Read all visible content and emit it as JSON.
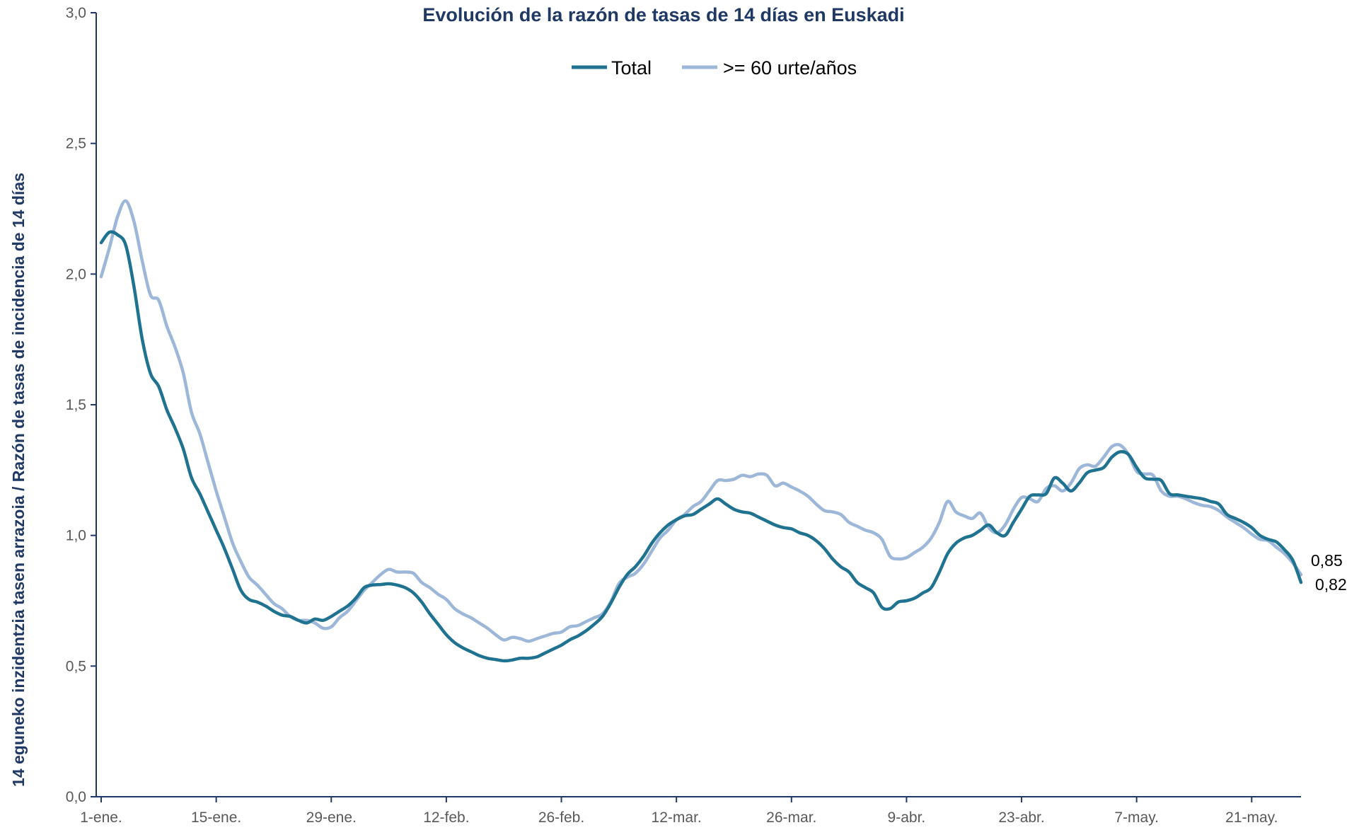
{
  "chart_data": {
    "type": "line",
    "title": "Evolución de la razón de tasas de 14 días en Euskadi",
    "ylabel": "14 eguneko inzidentzia tasen arrazoia / Razón de tasas de  incidencia de 14 días",
    "xlabel": "",
    "ylim": [
      0,
      3
    ],
    "yticks": [
      "0,0",
      "0,5",
      "1,0",
      "1,5",
      "2,0",
      "2,5",
      "3,0"
    ],
    "x_tick_labels": [
      "1-ene.",
      "15-ene.",
      "29-ene.",
      "12-feb.",
      "26-feb.",
      "12-mar.",
      "26-mar.",
      "9-abr.",
      "23-abr.",
      "7-may.",
      "21-may."
    ],
    "x_tick_days": [
      0,
      14,
      28,
      42,
      56,
      70,
      84,
      98,
      112,
      126,
      140
    ],
    "x_range_days": [
      0,
      146
    ],
    "legend_position": "top-center",
    "grid": false,
    "end_labels": [
      "0,85",
      "0,82"
    ],
    "series": [
      {
        "name": "Total",
        "color": "#1f7391",
        "points": [
          [
            0,
            2.12
          ],
          [
            1,
            2.16
          ],
          [
            2,
            2.15
          ],
          [
            3,
            2.11
          ],
          [
            4,
            1.95
          ],
          [
            5,
            1.75
          ],
          [
            6,
            1.62
          ],
          [
            7,
            1.57
          ],
          [
            8,
            1.48
          ],
          [
            9,
            1.41
          ],
          [
            10,
            1.33
          ],
          [
            11,
            1.22
          ],
          [
            12,
            1.16
          ],
          [
            13,
            1.09
          ],
          [
            14,
            1.02
          ],
          [
            15,
            0.95
          ],
          [
            16,
            0.87
          ],
          [
            17,
            0.79
          ],
          [
            18,
            0.755
          ],
          [
            19,
            0.745
          ],
          [
            20,
            0.73
          ],
          [
            21,
            0.71
          ],
          [
            22,
            0.695
          ],
          [
            23,
            0.69
          ],
          [
            24,
            0.675
          ],
          [
            25,
            0.665
          ],
          [
            26,
            0.68
          ],
          [
            27,
            0.675
          ],
          [
            28,
            0.69
          ],
          [
            29,
            0.71
          ],
          [
            30,
            0.73
          ],
          [
            31,
            0.76
          ],
          [
            32,
            0.8
          ],
          [
            33,
            0.81
          ],
          [
            34,
            0.812
          ],
          [
            35,
            0.815
          ],
          [
            36,
            0.81
          ],
          [
            37,
            0.8
          ],
          [
            38,
            0.78
          ],
          [
            39,
            0.745
          ],
          [
            40,
            0.7
          ],
          [
            41,
            0.66
          ],
          [
            42,
            0.62
          ],
          [
            43,
            0.59
          ],
          [
            44,
            0.57
          ],
          [
            45,
            0.555
          ],
          [
            46,
            0.54
          ],
          [
            47,
            0.53
          ],
          [
            48,
            0.525
          ],
          [
            49,
            0.52
          ],
          [
            50,
            0.523
          ],
          [
            51,
            0.53
          ],
          [
            52,
            0.53
          ],
          [
            53,
            0.535
          ],
          [
            54,
            0.55
          ],
          [
            55,
            0.565
          ],
          [
            56,
            0.58
          ],
          [
            57,
            0.6
          ],
          [
            58,
            0.615
          ],
          [
            59,
            0.635
          ],
          [
            60,
            0.66
          ],
          [
            61,
            0.69
          ],
          [
            62,
            0.74
          ],
          [
            63,
            0.8
          ],
          [
            64,
            0.85
          ],
          [
            65,
            0.88
          ],
          [
            66,
            0.92
          ],
          [
            67,
            0.97
          ],
          [
            68,
            1.01
          ],
          [
            69,
            1.04
          ],
          [
            70,
            1.06
          ],
          [
            71,
            1.075
          ],
          [
            72,
            1.08
          ],
          [
            73,
            1.1
          ],
          [
            74,
            1.12
          ],
          [
            75,
            1.14
          ],
          [
            76,
            1.12
          ],
          [
            77,
            1.1
          ],
          [
            78,
            1.09
          ],
          [
            79,
            1.085
          ],
          [
            80,
            1.07
          ],
          [
            81,
            1.055
          ],
          [
            82,
            1.04
          ],
          [
            83,
            1.03
          ],
          [
            84,
            1.025
          ],
          [
            85,
            1.01
          ],
          [
            86,
            1.0
          ],
          [
            87,
            0.98
          ],
          [
            88,
            0.95
          ],
          [
            89,
            0.91
          ],
          [
            90,
            0.88
          ],
          [
            91,
            0.86
          ],
          [
            92,
            0.82
          ],
          [
            93,
            0.8
          ],
          [
            94,
            0.78
          ],
          [
            95,
            0.725
          ],
          [
            96,
            0.72
          ],
          [
            97,
            0.745
          ],
          [
            98,
            0.75
          ],
          [
            99,
            0.76
          ],
          [
            100,
            0.78
          ],
          [
            101,
            0.8
          ],
          [
            102,
            0.86
          ],
          [
            103,
            0.93
          ],
          [
            104,
            0.97
          ],
          [
            105,
            0.99
          ],
          [
            106,
            1.0
          ],
          [
            107,
            1.02
          ],
          [
            108,
            1.04
          ],
          [
            109,
            1.01
          ],
          [
            110,
            1.0
          ],
          [
            111,
            1.05
          ],
          [
            112,
            1.1
          ],
          [
            113,
            1.15
          ],
          [
            114,
            1.155
          ],
          [
            115,
            1.16
          ],
          [
            116,
            1.22
          ],
          [
            117,
            1.2
          ],
          [
            118,
            1.17
          ],
          [
            119,
            1.2
          ],
          [
            120,
            1.24
          ],
          [
            121,
            1.25
          ],
          [
            122,
            1.26
          ],
          [
            123,
            1.3
          ],
          [
            124,
            1.32
          ],
          [
            125,
            1.31
          ],
          [
            126,
            1.26
          ],
          [
            127,
            1.22
          ],
          [
            128,
            1.215
          ],
          [
            129,
            1.21
          ],
          [
            130,
            1.16
          ],
          [
            131,
            1.155
          ],
          [
            132,
            1.15
          ],
          [
            133,
            1.145
          ],
          [
            134,
            1.14
          ],
          [
            135,
            1.13
          ],
          [
            136,
            1.12
          ],
          [
            137,
            1.08
          ],
          [
            138,
            1.065
          ],
          [
            139,
            1.05
          ],
          [
            140,
            1.03
          ],
          [
            141,
            1.0
          ],
          [
            142,
            0.985
          ],
          [
            143,
            0.975
          ],
          [
            144,
            0.945
          ],
          [
            145,
            0.905
          ],
          [
            146,
            0.82
          ]
        ]
      },
      {
        "name": ">= 60 urte/años",
        "color": "#9db7d8",
        "points": [
          [
            0,
            1.99
          ],
          [
            1,
            2.1
          ],
          [
            2,
            2.22
          ],
          [
            3,
            2.28
          ],
          [
            4,
            2.2
          ],
          [
            5,
            2.05
          ],
          [
            6,
            1.92
          ],
          [
            7,
            1.9
          ],
          [
            8,
            1.8
          ],
          [
            9,
            1.72
          ],
          [
            10,
            1.62
          ],
          [
            11,
            1.47
          ],
          [
            12,
            1.39
          ],
          [
            13,
            1.28
          ],
          [
            14,
            1.17
          ],
          [
            15,
            1.07
          ],
          [
            16,
            0.97
          ],
          [
            17,
            0.9
          ],
          [
            18,
            0.84
          ],
          [
            19,
            0.81
          ],
          [
            20,
            0.775
          ],
          [
            21,
            0.74
          ],
          [
            22,
            0.72
          ],
          [
            23,
            0.69
          ],
          [
            24,
            0.675
          ],
          [
            25,
            0.675
          ],
          [
            26,
            0.665
          ],
          [
            27,
            0.645
          ],
          [
            28,
            0.65
          ],
          [
            29,
            0.685
          ],
          [
            30,
            0.71
          ],
          [
            31,
            0.75
          ],
          [
            32,
            0.79
          ],
          [
            33,
            0.82
          ],
          [
            34,
            0.85
          ],
          [
            35,
            0.87
          ],
          [
            36,
            0.86
          ],
          [
            37,
            0.86
          ],
          [
            38,
            0.855
          ],
          [
            39,
            0.82
          ],
          [
            40,
            0.8
          ],
          [
            41,
            0.775
          ],
          [
            42,
            0.755
          ],
          [
            43,
            0.72
          ],
          [
            44,
            0.7
          ],
          [
            45,
            0.685
          ],
          [
            46,
            0.665
          ],
          [
            47,
            0.645
          ],
          [
            48,
            0.62
          ],
          [
            49,
            0.6
          ],
          [
            50,
            0.61
          ],
          [
            51,
            0.605
          ],
          [
            52,
            0.595
          ],
          [
            53,
            0.605
          ],
          [
            54,
            0.615
          ],
          [
            55,
            0.625
          ],
          [
            56,
            0.63
          ],
          [
            57,
            0.65
          ],
          [
            58,
            0.655
          ],
          [
            59,
            0.67
          ],
          [
            60,
            0.685
          ],
          [
            61,
            0.7
          ],
          [
            62,
            0.745
          ],
          [
            63,
            0.815
          ],
          [
            64,
            0.84
          ],
          [
            65,
            0.855
          ],
          [
            66,
            0.89
          ],
          [
            67,
            0.94
          ],
          [
            68,
            0.99
          ],
          [
            69,
            1.02
          ],
          [
            70,
            1.06
          ],
          [
            71,
            1.08
          ],
          [
            72,
            1.11
          ],
          [
            73,
            1.13
          ],
          [
            74,
            1.17
          ],
          [
            75,
            1.21
          ],
          [
            76,
            1.21
          ],
          [
            77,
            1.215
          ],
          [
            78,
            1.23
          ],
          [
            79,
            1.225
          ],
          [
            80,
            1.235
          ],
          [
            81,
            1.23
          ],
          [
            82,
            1.19
          ],
          [
            83,
            1.2
          ],
          [
            84,
            1.185
          ],
          [
            85,
            1.17
          ],
          [
            86,
            1.15
          ],
          [
            87,
            1.12
          ],
          [
            88,
            1.095
          ],
          [
            89,
            1.09
          ],
          [
            90,
            1.08
          ],
          [
            91,
            1.05
          ],
          [
            92,
            1.035
          ],
          [
            93,
            1.02
          ],
          [
            94,
            1.01
          ],
          [
            95,
            0.985
          ],
          [
            96,
            0.92
          ],
          [
            97,
            0.91
          ],
          [
            98,
            0.915
          ],
          [
            99,
            0.935
          ],
          [
            100,
            0.955
          ],
          [
            101,
            0.99
          ],
          [
            102,
            1.05
          ],
          [
            103,
            1.13
          ],
          [
            104,
            1.09
          ],
          [
            105,
            1.075
          ],
          [
            106,
            1.065
          ],
          [
            107,
            1.085
          ],
          [
            108,
            1.03
          ],
          [
            109,
            1.01
          ],
          [
            110,
            1.04
          ],
          [
            111,
            1.1
          ],
          [
            112,
            1.145
          ],
          [
            113,
            1.14
          ],
          [
            114,
            1.13
          ],
          [
            115,
            1.18
          ],
          [
            116,
            1.19
          ],
          [
            117,
            1.17
          ],
          [
            118,
            1.2
          ],
          [
            119,
            1.255
          ],
          [
            120,
            1.27
          ],
          [
            121,
            1.265
          ],
          [
            122,
            1.3
          ],
          [
            123,
            1.34
          ],
          [
            124,
            1.345
          ],
          [
            125,
            1.31
          ],
          [
            126,
            1.245
          ],
          [
            127,
            1.235
          ],
          [
            128,
            1.23
          ],
          [
            129,
            1.17
          ],
          [
            130,
            1.15
          ],
          [
            131,
            1.15
          ],
          [
            132,
            1.14
          ],
          [
            133,
            1.125
          ],
          [
            134,
            1.115
          ],
          [
            135,
            1.11
          ],
          [
            136,
            1.095
          ],
          [
            137,
            1.07
          ],
          [
            138,
            1.05
          ],
          [
            139,
            1.03
          ],
          [
            140,
            1.005
          ],
          [
            141,
            0.985
          ],
          [
            142,
            0.98
          ],
          [
            143,
            0.955
          ],
          [
            144,
            0.93
          ],
          [
            145,
            0.895
          ],
          [
            146,
            0.85
          ]
        ]
      }
    ]
  }
}
